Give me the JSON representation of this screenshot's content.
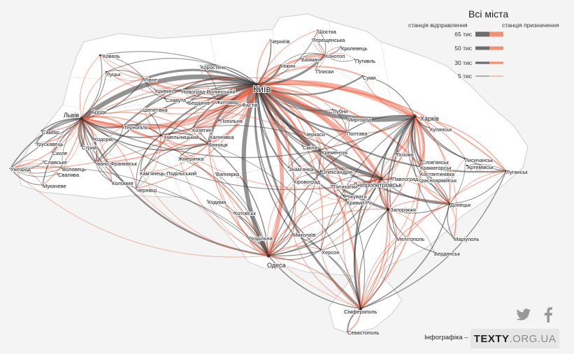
{
  "legend": {
    "title": "Всі міста",
    "departure_label": "станція відправлення",
    "arrival_label": "станція призначення",
    "values": [
      "65 тис",
      "50 тис",
      "30 тис",
      "5 тис"
    ],
    "departure_color": "#555555",
    "arrival_color": "#f47c5c"
  },
  "colors": {
    "background": "#f4f4f4",
    "border": "#d7d7d7",
    "region_border": "#e5e5e5",
    "flow_dark": "#3a3a3a",
    "flow_accent": "#f05a3c"
  },
  "share": {
    "twitter_icon": "twitter-icon",
    "facebook_icon": "facebook-icon"
  },
  "footer": {
    "credit": "Інфографіка –",
    "logo_main": "TEXTY",
    "logo_domain": ".ORG.UA"
  },
  "cities": [
    {
      "name": "Київ",
      "size": "big",
      "hub": true
    },
    {
      "name": "Харків",
      "size": "mid",
      "hub": true
    },
    {
      "name": "Львів",
      "size": "mid",
      "hub": true
    },
    {
      "name": "Одеса",
      "size": "mid",
      "hub": true
    },
    {
      "name": "Дніпропетровськ",
      "size": "mid",
      "hub": true
    },
    {
      "name": "Запоріжжя",
      "hub": true
    },
    {
      "name": "Сімферополь",
      "hub": true
    },
    {
      "name": "Фастів"
    },
    {
      "name": "Ковель"
    },
    {
      "name": "Луцьк"
    },
    {
      "name": "Рівне"
    },
    {
      "name": "Коростень"
    },
    {
      "name": "Новоград-Волинський"
    },
    {
      "name": "Житомир"
    },
    {
      "name": "Кривин"
    },
    {
      "name": "Славута"
    },
    {
      "name": "Шепетівка"
    },
    {
      "name": "Броди"
    },
    {
      "name": "Тернопіль"
    },
    {
      "name": "Бердичів"
    },
    {
      "name": "Козятин"
    },
    {
      "name": "Попільня"
    },
    {
      "name": "Калинівка"
    },
    {
      "name": "Вінниця"
    },
    {
      "name": "Хмельницький"
    },
    {
      "name": "Жмеринка"
    },
    {
      "name": "Кам'янець-Подільський"
    },
    {
      "name": "Чернівці"
    },
    {
      "name": "Самбір"
    },
    {
      "name": "Трускавець"
    },
    {
      "name": "Стрий"
    },
    {
      "name": "Ходорів"
    },
    {
      "name": "Сколе"
    },
    {
      "name": "Славське"
    },
    {
      "name": "Воловець"
    },
    {
      "name": "Свалява"
    },
    {
      "name": "Ужгород"
    },
    {
      "name": "Мукачеве"
    },
    {
      "name": "Івано-Франківськ"
    },
    {
      "name": "Коломия"
    },
    {
      "name": "Вапнярка"
    },
    {
      "name": "Кодима"
    },
    {
      "name": "Котовськ"
    },
    {
      "name": "Роздільна"
    },
    {
      "name": "Миколаїв"
    },
    {
      "name": "Херсон"
    },
    {
      "name": "Чернігів"
    },
    {
      "name": "Шостка"
    },
    {
      "name": "Терещенська"
    },
    {
      "name": "Кролевець"
    },
    {
      "name": "Бахмач"
    },
    {
      "name": "Конотоп"
    },
    {
      "name": "Ніжин"
    },
    {
      "name": "Плиски"
    },
    {
      "name": "Путивль"
    },
    {
      "name": "Суми"
    },
    {
      "name": "Лубни"
    },
    {
      "name": "Миргород"
    },
    {
      "name": "Полтава"
    },
    {
      "name": "Черкаси"
    },
    {
      "name": "Сміла"
    },
    {
      "name": "Кременчук"
    },
    {
      "name": "Знам'янка"
    },
    {
      "name": "Олександрія"
    },
    {
      "name": "Кіровоград"
    },
    {
      "name": "П'ятихатки"
    },
    {
      "name": "Рокувата"
    },
    {
      "name": "Кривий Ріг"
    },
    {
      "name": "Купянськ"
    },
    {
      "name": "Лозова"
    },
    {
      "name": "Слов'янськ"
    },
    {
      "name": "Краматорськ"
    },
    {
      "name": "Костянтинівка"
    },
    {
      "name": "Красноармійськ"
    },
    {
      "name": "Павлоград"
    },
    {
      "name": "Лисичанськ"
    },
    {
      "name": "Артемівськ"
    },
    {
      "name": "Луганськ"
    },
    {
      "name": "Донецьк"
    },
    {
      "name": "Мелітополь"
    },
    {
      "name": "Маріуполь"
    },
    {
      "name": "Бердянськ"
    },
    {
      "name": "Севастополь"
    }
  ],
  "flows": [
    {
      "from": "Київ",
      "to": "Харків",
      "volume": 65
    },
    {
      "from": "Київ",
      "to": "Львів",
      "volume": 60
    },
    {
      "from": "Київ",
      "to": "Одеса",
      "volume": 55
    },
    {
      "from": "Київ",
      "to": "Дніпропетровськ",
      "volume": 50
    },
    {
      "from": "Київ",
      "to": "Фастів",
      "volume": 45
    },
    {
      "from": "Київ",
      "to": "Житомир",
      "volume": 40
    },
    {
      "from": "Київ",
      "to": "Конотоп",
      "volume": 30
    },
    {
      "from": "Київ",
      "to": "Вінниця",
      "volume": 35
    },
    {
      "from": "Київ",
      "to": "Запоріжжя",
      "volume": 30
    },
    {
      "from": "Київ",
      "to": "Сімферополь",
      "volume": 28
    },
    {
      "from": "Київ",
      "to": "Полтава",
      "volume": 22
    },
    {
      "from": "Київ",
      "to": "Кременчук",
      "volume": 18
    },
    {
      "from": "Київ",
      "to": "Черкаси",
      "volume": 15
    },
    {
      "from": "Київ",
      "to": "Сміла",
      "volume": 12
    },
    {
      "from": "Київ",
      "to": "Суми",
      "volume": 20
    },
    {
      "from": "Київ",
      "to": "Ніжин",
      "volume": 25
    },
    {
      "from": "Київ",
      "to": "Чернігів",
      "volume": 15
    },
    {
      "from": "Київ",
      "to": "Новоград-Волинський",
      "volume": 18
    },
    {
      "from": "Київ",
      "to": "Коростень",
      "volume": 15
    },
    {
      "from": "Київ",
      "to": "Рівне",
      "volume": 30
    },
    {
      "from": "Київ",
      "to": "Хмельницький",
      "volume": 22
    },
    {
      "from": "Київ",
      "to": "Тернопіль",
      "volume": 20
    },
    {
      "from": "Київ",
      "to": "Івано-Франківськ",
      "volume": 18
    },
    {
      "from": "Київ",
      "to": "Ужгород",
      "volume": 12
    },
    {
      "from": "Київ",
      "to": "Чернівці",
      "volume": 14
    },
    {
      "from": "Київ",
      "to": "Кривий Ріг",
      "volume": 22
    },
    {
      "from": "Київ",
      "to": "Миколаїв",
      "volume": 16
    },
    {
      "from": "Київ",
      "to": "Херсон",
      "volume": 15
    },
    {
      "from": "Київ",
      "to": "Донецьк",
      "volume": 25
    },
    {
      "from": "Київ",
      "to": "Луганськ",
      "volume": 20
    },
    {
      "from": "Київ",
      "to": "Кіровоград",
      "volume": 12
    },
    {
      "from": "Київ",
      "to": "Лубни",
      "volume": 10
    },
    {
      "from": "Київ",
      "to": "Шостка",
      "volume": 10
    },
    {
      "from": "Київ",
      "to": "Ковель",
      "volume": 10
    },
    {
      "from": "Київ",
      "to": "Луцьк",
      "volume": 10
    },
    {
      "from": "Київ",
      "to": "Козятин",
      "volume": 18
    },
    {
      "from": "Київ",
      "to": "Бердичів",
      "volume": 14
    },
    {
      "from": "Київ",
      "to": "Шепетівка",
      "volume": 14
    },
    {
      "from": "Київ",
      "to": "Знам'янка",
      "volume": 12
    },
    {
      "from": "Львів",
      "to": "Стрий",
      "volume": 25
    },
    {
      "from": "Львів",
      "to": "Самбір",
      "volume": 15
    },
    {
      "from": "Львів",
      "to": "Трускавець",
      "volume": 18
    },
    {
      "from": "Львів",
      "to": "Ужгород",
      "volume": 15
    },
    {
      "from": "Львів",
      "to": "Мукачеве",
      "volume": 15
    },
    {
      "from": "Львів",
      "to": "Івано-Франківськ",
      "volume": 22
    },
    {
      "from": "Львів",
      "to": "Тернопіль",
      "volume": 22
    },
    {
      "from": "Львів",
      "to": "Рівне",
      "volume": 15
    },
    {
      "from": "Львів",
      "to": "Одеса",
      "volume": 22
    },
    {
      "from": "Львів",
      "to": "Харків",
      "volume": 12
    },
    {
      "from": "Львів",
      "to": "Хмельницький",
      "volume": 16
    },
    {
      "from": "Львів",
      "to": "Коломия",
      "volume": 12
    },
    {
      "from": "Львів",
      "to": "Чернівці",
      "volume": 12
    },
    {
      "from": "Львів",
      "to": "Броди",
      "volume": 10
    },
    {
      "from": "Львів",
      "to": "Ходорів",
      "volume": 10
    },
    {
      "from": "Львів",
      "to": "Вінниця",
      "volume": 15
    },
    {
      "from": "Львів",
      "to": "Дніпропетровськ",
      "volume": 10
    },
    {
      "from": "Львів",
      "to": "Луцьк",
      "volume": 10
    },
    {
      "from": "Львів",
      "to": "Ковель",
      "volume": 10
    },
    {
      "from": "Львів",
      "to": "Воловець",
      "volume": 8
    },
    {
      "from": "Львів",
      "to": "Сколе",
      "volume": 8
    },
    {
      "from": "Харків",
      "to": "Лозова",
      "volume": 25
    },
    {
      "from": "Харків",
      "to": "Слов'янськ",
      "volume": 18
    },
    {
      "from": "Харків",
      "to": "Купянськ",
      "volume": 15
    },
    {
      "from": "Харків",
      "to": "Полтава",
      "volume": 15
    },
    {
      "from": "Харків",
      "to": "Суми",
      "volume": 12
    },
    {
      "from": "Харків",
      "to": "Дніпропетровськ",
      "volume": 18
    },
    {
      "from": "Харків",
      "to": "Запоріжжя",
      "volume": 16
    },
    {
      "from": "Харків",
      "to": "Сімферополь",
      "volume": 20
    },
    {
      "from": "Харків",
      "to": "Одеса",
      "volume": 12
    },
    {
      "from": "Харків",
      "to": "Луганськ",
      "volume": 14
    },
    {
      "from": "Харків",
      "to": "Лисичанськ",
      "volume": 14
    },
    {
      "from": "Харків",
      "to": "Донецьк",
      "volume": 14
    },
    {
      "from": "Харків",
      "to": "Костянтинівка",
      "volume": 12
    },
    {
      "from": "Харків",
      "to": "Краматорськ",
      "volume": 12
    },
    {
      "from": "Харків",
      "to": "Красноармійськ",
      "volume": 10
    },
    {
      "from": "Харків",
      "to": "Мелітополь",
      "volume": 10
    },
    {
      "from": "Харків",
      "to": "Херсон",
      "volume": 10
    },
    {
      "from": "Харків",
      "to": "Маріуполь",
      "volume": 10
    },
    {
      "from": "Одеса",
      "to": "Роздільна",
      "volume": 20
    },
    {
      "from": "Одеса",
      "to": "Миколаїв",
      "volume": 15
    },
    {
      "from": "Одеса",
      "to": "Котовськ",
      "volume": 14
    },
    {
      "from": "Одеса",
      "to": "Херсон",
      "volume": 12
    },
    {
      "from": "Одеса",
      "to": "Вінниця",
      "volume": 14
    },
    {
      "from": "Одеса",
      "to": "Кременчук",
      "volume": 10
    },
    {
      "from": "Одеса",
      "to": "Дніпропетровськ",
      "volume": 14
    },
    {
      "from": "Одеса",
      "to": "Запоріжжя",
      "volume": 12
    },
    {
      "from": "Одеса",
      "to": "Сімферополь",
      "volume": 14
    },
    {
      "from": "Одеса",
      "to": "Кривий Ріг",
      "volume": 10
    },
    {
      "from": "Одеса",
      "to": "Жмеринка",
      "volume": 10
    },
    {
      "from": "Одеса",
      "to": "Кодима",
      "volume": 8
    },
    {
      "from": "Одеса",
      "to": "Вапнярка",
      "volume": 8
    },
    {
      "from": "Одеса",
      "to": "Кіровоград",
      "volume": 10
    },
    {
      "from": "Дніпропетровськ",
      "to": "Павлоград",
      "volume": 18
    },
    {
      "from": "Дніпропетровськ",
      "to": "Кривий Ріг",
      "volume": 16
    },
    {
      "from": "Дніпропетровськ",
      "to": "Запоріжжя",
      "volume": 16
    },
    {
      "from": "Дніпропетровськ",
      "to": "Сімферополь",
      "volume": 18
    },
    {
      "from": "Дніпропетровськ",
      "to": "Донецьк",
      "volume": 12
    },
    {
      "from": "Дніпропетровськ",
      "to": "Лозова",
      "volume": 10
    },
    {
      "from": "Дніпропетровськ",
      "to": "П'ятихатки",
      "volume": 10
    },
    {
      "from": "Дніпропетровськ",
      "to": "Олександрія",
      "volume": 10
    },
    {
      "from": "Дніпропетровськ",
      "to": "Кременчук",
      "volume": 10
    },
    {
      "from": "Дніпропетровськ",
      "to": "Хмельницький",
      "volume": 10
    },
    {
      "from": "Дніпропетровськ",
      "to": "Кіровоград",
      "volume": 8
    },
    {
      "from": "Запоріжжя",
      "to": "Мелітополь",
      "volume": 14
    },
    {
      "from": "Запоріжжя",
      "to": "Бердянськ",
      "volume": 10
    },
    {
      "from": "Запоріжжя",
      "to": "Сімферополь",
      "volume": 12
    },
    {
      "from": "Запоріжжя",
      "to": "Донецьк",
      "volume": 12
    },
    {
      "from": "Сімферополь",
      "to": "Севастополь",
      "volume": 18
    },
    {
      "from": "Сімферополь",
      "to": "Миколаїв",
      "volume": 10
    },
    {
      "from": "Сімферополь",
      "to": "Херсон",
      "volume": 12
    },
    {
      "from": "Сімферополь",
      "to": "Кривий Ріг",
      "volume": 10
    },
    {
      "from": "Сімферополь",
      "to": "Донецьк",
      "volume": 14
    },
    {
      "from": "Сімферополь",
      "to": "Луганськ",
      "volume": 12
    },
    {
      "from": "Сімферополь",
      "to": "Мелітополь",
      "volume": 10
    },
    {
      "from": "Сімферополь",
      "to": "Вінниця",
      "volume": 8
    },
    {
      "from": "Донецьк",
      "to": "Маріуполь",
      "volume": 12
    },
    {
      "from": "Донецьк",
      "to": "Красноармійськ",
      "volume": 10
    },
    {
      "from": "Донецьк",
      "to": "Костянтинівка",
      "volume": 10
    },
    {
      "from": "Донецьк",
      "to": "Луганськ",
      "volume": 10
    },
    {
      "from": "Донецьк",
      "to": "Лисичанськ",
      "volume": 8
    },
    {
      "from": "Луганськ",
      "to": "Артемівськ",
      "volume": 8
    },
    {
      "from": "Конотоп",
      "to": "Шостка",
      "volume": 10
    },
    {
      "from": "Конотоп",
      "to": "Кролевець",
      "volume": 10
    },
    {
      "from": "Конотоп",
      "to": "Бахмач",
      "volume": 10
    },
    {
      "from": "Конотоп",
      "to": "Путивль",
      "volume": 8
    },
    {
      "from": "Конотоп",
      "to": "Терещенська",
      "volume": 8
    },
    {
      "from": "Конотоп",
      "to": "Плиски",
      "volume": 8
    },
    {
      "from": "Конотоп",
      "to": "Ніжин",
      "volume": 8
    },
    {
      "from": "Вінниця",
      "to": "Хмельницький",
      "volume": 14
    },
    {
      "from": "Вінниця",
      "to": "Жмеринка",
      "volume": 14
    },
    {
      "from": "Вінниця",
      "to": "Козятин",
      "volume": 12
    },
    {
      "from": "Вінниця",
      "to": "Калинівка",
      "volume": 10
    },
    {
      "from": "Вінниця",
      "to": "Кам'янець-Подільський",
      "volume": 10
    },
    {
      "from": "Вінниця",
      "to": "Тернопіль",
      "volume": 10
    },
    {
      "from": "Хмельницький",
      "to": "Кам'янець-Подільський",
      "volume": 12
    },
    {
      "from": "Хмельницький",
      "to": "Тернопіль",
      "volume": 12
    },
    {
      "from": "Хмельницький",
      "to": "Шепетівка",
      "volume": 10
    },
    {
      "from": "Хмельницький",
      "to": "Чернівці",
      "volume": 10
    },
    {
      "from": "Івано-Франківськ",
      "to": "Коломия",
      "volume": 10
    },
    {
      "from": "Івано-Франківськ",
      "to": "Тернопіль",
      "volume": 10
    },
    {
      "from": "Івано-Франківськ",
      "to": "Ходорів",
      "volume": 8
    },
    {
      "from": "Ужгород",
      "to": "Мукачеве",
      "volume": 10
    },
    {
      "from": "Ужгород",
      "to": "Свалява",
      "volume": 8
    },
    {
      "from": "Ужгород",
      "to": "Воловець",
      "volume": 8
    },
    {
      "from": "Ужгород",
      "to": "Славське",
      "volume": 8
    },
    {
      "from": "Житомир",
      "to": "Бердичів",
      "volume": 10
    },
    {
      "from": "Житомир",
      "to": "Коростень",
      "volume": 8
    },
    {
      "from": "Житомир",
      "to": "Новоград-Волинський",
      "volume": 8
    },
    {
      "from": "Рівне",
      "to": "Луцьк",
      "volume": 10
    },
    {
      "from": "Рівне",
      "to": "Ковель",
      "volume": 10
    },
    {
      "from": "Рівне",
      "to": "Кривин",
      "volume": 8
    },
    {
      "from": "Рівне",
      "to": "Славута",
      "volume": 8
    },
    {
      "from": "Фастів",
      "to": "Козятин",
      "volume": 12
    },
    {
      "from": "Фастів",
      "to": "Попільня",
      "volume": 10
    },
    {
      "from": "Полтава",
      "to": "Миргород",
      "volume": 8
    },
    {
      "from": "Полтава",
      "to": "Лубни",
      "volume": 8
    },
    {
      "from": "Полтава",
      "to": "Кременчук",
      "volume": 8
    },
    {
      "from": "Кременчук",
      "to": "Знам'янка",
      "volume": 8
    },
    {
      "from": "Кременчук",
      "to": "Олександрія",
      "volume": 8
    },
    {
      "from": "Кривий Ріг",
      "to": "Рокувата",
      "volume": 8
    },
    {
      "from": "Кривий Ріг",
      "to": "П'ятихатки",
      "volume": 8
    },
    {
      "from": "Кривий Ріг",
      "to": "Знам'янка",
      "volume": 8
    },
    {
      "from": "Одеса",
      "to": "Ужгород",
      "volume": 8
    },
    {
      "from": "Одеса",
      "to": "Чернівці",
      "volume": 8
    },
    {
      "from": "Одеса",
      "to": "Кам'янець-Подільський",
      "volume": 8
    }
  ]
}
